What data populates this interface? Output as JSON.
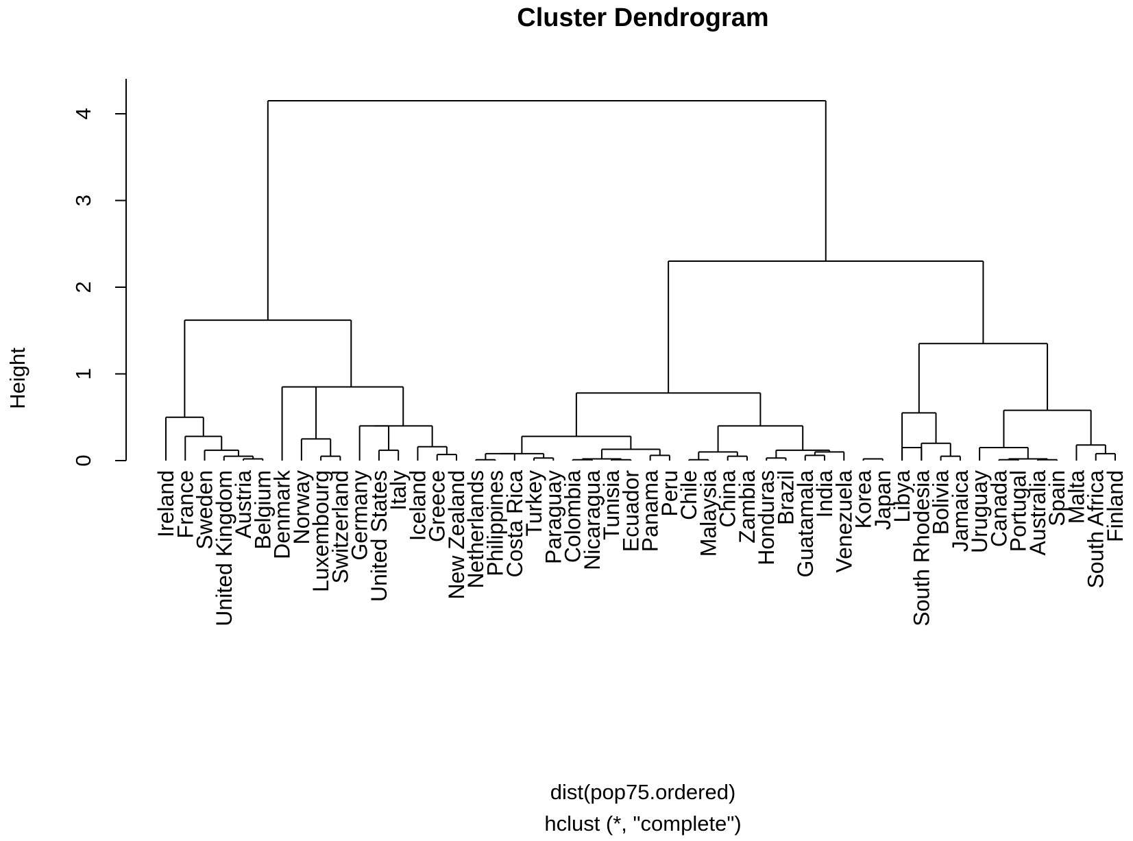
{
  "chart_data": {
    "type": "dendrogram",
    "title": "Cluster Dendrogram",
    "ylabel": "Height",
    "xlabel": "dist(pop75.ordered)",
    "sub": "hclust (*, \"complete\")",
    "ylim": [
      0,
      4.3
    ],
    "yticks": [
      0,
      1,
      2,
      3,
      4
    ],
    "grid": false,
    "legend": "none",
    "leaves": [
      "Ireland",
      "France",
      "Sweden",
      "United Kingdom",
      "Austria",
      "Belgium",
      "Denmark",
      "Norway",
      "Luxembourg",
      "Switzerland",
      "Germany",
      "United States",
      "Italy",
      "Iceland",
      "Greece",
      "New Zealand",
      "Netherlands",
      "Philippines",
      "Costa Rica",
      "Turkey",
      "Paraguay",
      "Colombia",
      "Nicaragua",
      "Tunisia",
      "Ecuador",
      "Panama",
      "Peru",
      "Chile",
      "Malaysia",
      "China",
      "Zambia",
      "Honduras",
      "Brazil",
      "Guatamala",
      "India",
      "Venezuela",
      "Korea",
      "Japan",
      "Libya",
      "South Rhodesia",
      "Bolivia",
      "Jamaica",
      "Uruguay",
      "Canada",
      "Portugal",
      "Australia",
      "Spain",
      "Malta",
      "South Africa",
      "Finland"
    ],
    "merges": [
      [
        4,
        5,
        0.02
      ],
      [
        3,
        "m0",
        0.05
      ],
      [
        2,
        "m1",
        0.12
      ],
      [
        1,
        "m2",
        0.28
      ],
      [
        0,
        "m3",
        0.5
      ],
      [
        8,
        9,
        0.05
      ],
      [
        7,
        "m5",
        0.25
      ],
      [
        6,
        "m6",
        0.85
      ],
      [
        11,
        12,
        0.12
      ],
      [
        14,
        15,
        0.07
      ],
      [
        13,
        "m9",
        0.16
      ],
      [
        10,
        "m8",
        0.4
      ],
      [
        "m10",
        "m11",
        0.4
      ],
      [
        "m7",
        "m12",
        0.85
      ],
      [
        0,
        0,
        0
      ],
      [
        "m4",
        "m13",
        1.62
      ],
      [
        16,
        17,
        0.01
      ],
      [
        18,
        "m16",
        0.08
      ],
      [
        19,
        20,
        0.03
      ],
      [
        "m17",
        "m18",
        0.08
      ],
      [
        21,
        22,
        0.01
      ],
      [
        23,
        24,
        0.01
      ],
      [
        "m20",
        "m21",
        0.02
      ],
      [
        25,
        26,
        0.06
      ],
      [
        "m22",
        "m23",
        0.13
      ],
      [
        "m19",
        "m24",
        0.28
      ],
      [
        27,
        28,
        0.01
      ],
      [
        29,
        30,
        0.05
      ],
      [
        "m26",
        "m27",
        0.1
      ],
      [
        31,
        32,
        0.03
      ],
      [
        33,
        34,
        0.06
      ],
      [
        35,
        "m30",
        0.1
      ],
      [
        "m29",
        "m31",
        0.12
      ],
      [
        "m28",
        "m32",
        0.4
      ],
      [
        "m25",
        "m33",
        0.78
      ],
      [
        36,
        37,
        0.02
      ],
      [
        38,
        39,
        0.15
      ],
      [
        40,
        41,
        0.05
      ],
      [
        39,
        "m37",
        0.2
      ],
      [
        38,
        "m38",
        0.55
      ],
      [
        43,
        44,
        0.01
      ],
      [
        45,
        46,
        0.01
      ],
      [
        "m40",
        "m41",
        0.02
      ],
      [
        42,
        "m42",
        0.15
      ],
      [
        48,
        49,
        0.08
      ],
      [
        47,
        "m44",
        0.18
      ],
      [
        "m43",
        "m45",
        0.58
      ],
      [
        "m39",
        "m46",
        1.35
      ],
      [
        "m34",
        "m47",
        2.3
      ],
      [
        "m15",
        "m48",
        4.15
      ]
    ]
  }
}
